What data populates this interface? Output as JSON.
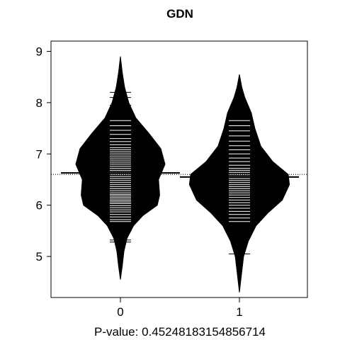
{
  "chart_data": {
    "type": "beanplot",
    "title": "GDN",
    "xlabel": "P-value: 0.45248183154856714",
    "ylabel": "",
    "categories": [
      "0",
      "1"
    ],
    "ylim": [
      4.2,
      9.2
    ],
    "yticks": [
      5,
      6,
      7,
      8,
      9
    ],
    "overall_mean": 6.6,
    "grid": false,
    "legend": "none",
    "colors": {
      "bean": "#000000",
      "lines": "#ffffff",
      "background": "#ffffff"
    },
    "series": [
      {
        "group": "0",
        "mean": 6.63,
        "density": [
          [
            4.55,
            0.0
          ],
          [
            4.8,
            0.03
          ],
          [
            5.1,
            0.06
          ],
          [
            5.35,
            0.11
          ],
          [
            5.6,
            0.22
          ],
          [
            5.8,
            0.38
          ],
          [
            6.0,
            0.62
          ],
          [
            6.2,
            0.66
          ],
          [
            6.5,
            0.64
          ],
          [
            6.8,
            0.75
          ],
          [
            7.1,
            0.68
          ],
          [
            7.4,
            0.48
          ],
          [
            7.7,
            0.26
          ],
          [
            8.0,
            0.14
          ],
          [
            8.3,
            0.07
          ],
          [
            8.6,
            0.03
          ],
          [
            8.9,
            0.0
          ]
        ],
        "observations": [
          5.28,
          5.32,
          5.68,
          5.72,
          5.77,
          5.82,
          5.87,
          5.91,
          5.95,
          5.99,
          6.03,
          6.06,
          6.09,
          6.12,
          6.15,
          6.18,
          6.21,
          6.24,
          6.28,
          6.32,
          6.36,
          6.4,
          6.44,
          6.48,
          6.52,
          6.56,
          6.6,
          6.64,
          6.68,
          6.72,
          6.76,
          6.8,
          6.84,
          6.88,
          6.92,
          6.96,
          7.0,
          7.04,
          7.08,
          7.12,
          7.18,
          7.24,
          7.3,
          7.38,
          7.46,
          7.55,
          7.65,
          7.95,
          8.1,
          8.2
        ]
      },
      {
        "group": "1",
        "mean": 6.55,
        "density": [
          [
            4.3,
            0.0
          ],
          [
            4.6,
            0.03
          ],
          [
            5.0,
            0.07
          ],
          [
            5.3,
            0.15
          ],
          [
            5.6,
            0.28
          ],
          [
            5.85,
            0.48
          ],
          [
            6.1,
            0.72
          ],
          [
            6.4,
            0.84
          ],
          [
            6.6,
            0.82
          ],
          [
            6.85,
            0.56
          ],
          [
            7.15,
            0.36
          ],
          [
            7.5,
            0.26
          ],
          [
            7.8,
            0.2
          ],
          [
            8.1,
            0.09
          ],
          [
            8.3,
            0.04
          ],
          [
            8.55,
            0.0
          ]
        ],
        "observations": [
          5.05,
          5.68,
          5.75,
          5.82,
          5.88,
          5.94,
          6.0,
          6.05,
          6.1,
          6.15,
          6.2,
          6.24,
          6.28,
          6.32,
          6.36,
          6.4,
          6.44,
          6.48,
          6.52,
          6.56,
          6.6,
          6.64,
          6.68,
          6.72,
          6.78,
          6.85,
          6.92,
          7.0,
          7.08,
          7.16,
          7.25,
          7.35,
          7.45,
          7.55,
          7.65,
          7.75,
          7.85
        ]
      }
    ]
  }
}
